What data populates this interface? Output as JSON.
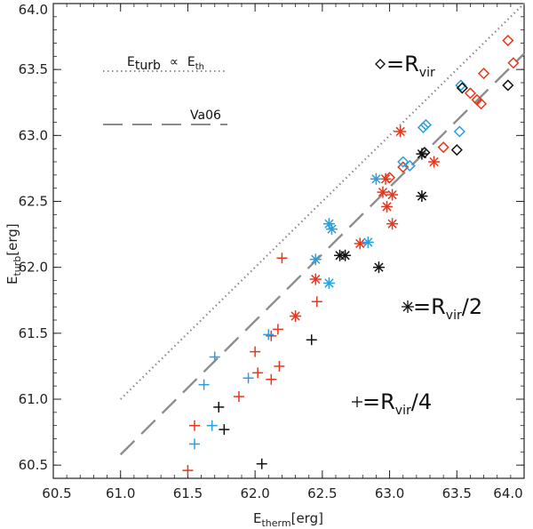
{
  "chart_data": {
    "type": "scatter",
    "xlabel": "E",
    "xlabel_sub": "therm",
    "xlabel_unit": "[erg]",
    "ylabel": "E",
    "ylabel_sub": "turb",
    "ylabel_unit": "[erg]",
    "xlim": [
      60.5,
      64.0
    ],
    "ylim": [
      60.4,
      64.0
    ],
    "xticks": [
      "60.5",
      "61.0",
      "61.5",
      "62.0",
      "62.5",
      "63.0",
      "63.5",
      "64.0"
    ],
    "yticks": [
      "60.5",
      "61.0",
      "61.5",
      "62.0",
      "62.5",
      "63.0",
      "63.5",
      "64.0"
    ],
    "colors": {
      "red": "#e8361c",
      "blue": "#2a9fe0",
      "black": "#111111",
      "line": "#8c8c8c"
    },
    "lines": [
      {
        "name": "E_turb ∝ E_th",
        "style": "dotted",
        "x": [
          61.0,
          64.0
        ],
        "y": [
          61.0,
          64.0
        ]
      },
      {
        "name": "Va06",
        "style": "dashed",
        "x": [
          61.0,
          64.0
        ],
        "y": [
          60.58,
          63.62
        ]
      }
    ],
    "legend": {
      "line1": {
        "a": "E",
        "a_sub": "turb",
        "op": "∝",
        "b": "E",
        "b_sub": "th"
      },
      "line2": "Va06"
    },
    "annotations": {
      "rvir": {
        "text": "=R",
        "sub": "vir",
        "suffix": ""
      },
      "rvir2": {
        "text": "=R",
        "sub": "vir",
        "suffix": "/2"
      },
      "rvir4": {
        "text": "=R",
        "sub": "vir",
        "suffix": "/4"
      }
    },
    "series": [
      {
        "marker": "diamond",
        "color": "red",
        "points": [
          [
            63.88,
            63.72
          ],
          [
            63.92,
            63.55
          ],
          [
            63.6,
            63.32
          ],
          [
            63.65,
            63.27
          ],
          [
            63.68,
            63.24
          ],
          [
            63.7,
            63.47
          ],
          [
            63.4,
            62.91
          ],
          [
            63.1,
            62.76
          ],
          [
            63.0,
            62.68
          ]
        ]
      },
      {
        "marker": "diamond",
        "color": "blue",
        "points": [
          [
            63.53,
            63.38
          ],
          [
            63.52,
            63.03
          ],
          [
            63.25,
            63.06
          ],
          [
            63.27,
            63.08
          ],
          [
            63.1,
            62.8
          ],
          [
            63.15,
            62.77
          ]
        ]
      },
      {
        "marker": "diamond",
        "color": "black",
        "points": [
          [
            63.88,
            63.38
          ],
          [
            63.5,
            62.89
          ],
          [
            63.26,
            62.87
          ],
          [
            63.54,
            63.36
          ]
        ]
      },
      {
        "marker": "asterisk",
        "color": "red",
        "points": [
          [
            63.08,
            63.03
          ],
          [
            63.33,
            62.8
          ],
          [
            62.97,
            62.67
          ],
          [
            63.02,
            62.55
          ],
          [
            62.95,
            62.57
          ],
          [
            62.98,
            62.46
          ],
          [
            63.02,
            62.33
          ],
          [
            62.78,
            62.18
          ],
          [
            62.45,
            61.91
          ],
          [
            62.3,
            61.63
          ]
        ]
      },
      {
        "marker": "asterisk",
        "color": "blue",
        "points": [
          [
            62.9,
            62.67
          ],
          [
            62.55,
            62.33
          ],
          [
            62.57,
            62.29
          ],
          [
            62.45,
            62.06
          ],
          [
            62.55,
            61.88
          ],
          [
            62.84,
            62.19
          ]
        ]
      },
      {
        "marker": "asterisk",
        "color": "black",
        "points": [
          [
            62.63,
            62.09
          ],
          [
            62.67,
            62.09
          ],
          [
            62.92,
            62.0
          ],
          [
            63.24,
            62.54
          ],
          [
            63.24,
            62.86
          ]
        ]
      },
      {
        "marker": "plus",
        "color": "red",
        "points": [
          [
            62.2,
            62.07
          ],
          [
            62.46,
            61.74
          ],
          [
            62.17,
            61.53
          ],
          [
            62.12,
            61.48
          ],
          [
            62.0,
            61.36
          ],
          [
            62.18,
            61.25
          ],
          [
            62.02,
            61.2
          ],
          [
            62.12,
            61.15
          ],
          [
            61.88,
            61.02
          ],
          [
            61.55,
            60.8
          ],
          [
            61.5,
            60.46
          ]
        ]
      },
      {
        "marker": "plus",
        "color": "blue",
        "points": [
          [
            61.7,
            61.32
          ],
          [
            62.1,
            61.49
          ],
          [
            61.95,
            61.16
          ],
          [
            61.62,
            61.11
          ],
          [
            61.68,
            60.8
          ],
          [
            61.55,
            60.66
          ]
        ]
      },
      {
        "marker": "plus",
        "color": "black",
        "points": [
          [
            62.42,
            61.45
          ],
          [
            61.73,
            60.94
          ],
          [
            61.77,
            60.77
          ],
          [
            62.05,
            60.51
          ]
        ]
      }
    ]
  }
}
